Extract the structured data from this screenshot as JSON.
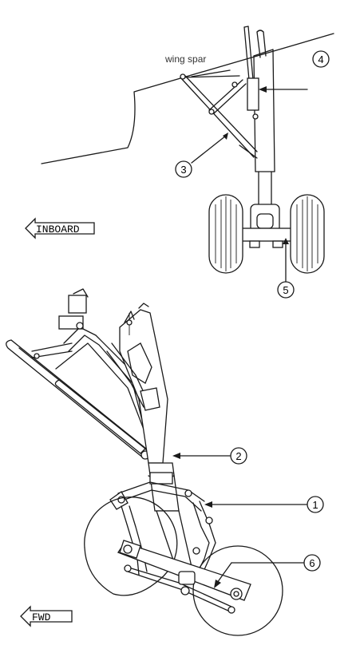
{
  "labels": {
    "wing_spar": "wing spar",
    "inboard": "INBOARD",
    "fwd": "FWD"
  },
  "callouts": {
    "c1": "1",
    "c2": "2",
    "c3": "3",
    "c4": "4",
    "c5": "5",
    "c6": "6"
  }
}
